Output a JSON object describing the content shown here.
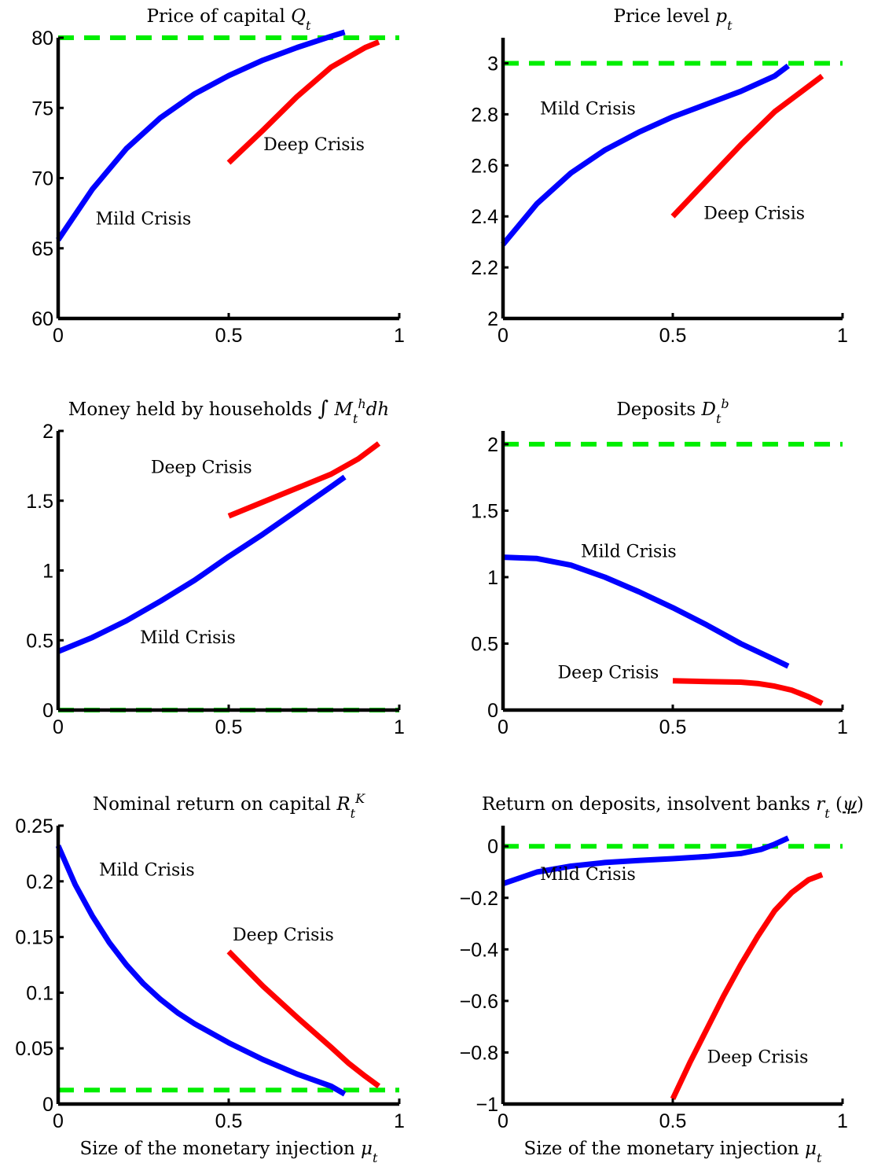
{
  "colors": {
    "mild": "#0000ff",
    "deep": "#ff0000",
    "reference": "#00ee00"
  },
  "chart_data": [
    {
      "type": "line",
      "title_parts": [
        {
          "t": "Price of capital "
        },
        {
          "t": "Q",
          "it": true
        },
        {
          "t": "t",
          "sub": true,
          "it": true
        }
      ],
      "xlabel_parts": [],
      "xlim": [
        0,
        1
      ],
      "ylim": [
        60,
        80
      ],
      "xticks": [
        0,
        0.5,
        1
      ],
      "xtick_labels": [
        "0",
        "0.5",
        "1"
      ],
      "yticks": [
        60,
        65,
        70,
        75,
        80
      ],
      "ytick_labels": [
        "60",
        "65",
        "70",
        "75",
        "80"
      ],
      "reference_line": {
        "y": 80,
        "style": "dashed",
        "color": "green"
      },
      "series": [
        {
          "key": "mild",
          "x": [
            0,
            0.1,
            0.2,
            0.3,
            0.4,
            0.5,
            0.6,
            0.7,
            0.8,
            0.84
          ],
          "y": [
            65.6,
            69.2,
            72.1,
            74.3,
            76.0,
            77.3,
            78.4,
            79.3,
            80.1,
            80.4
          ]
        },
        {
          "key": "deep",
          "x": [
            0.5,
            0.6,
            0.7,
            0.8,
            0.9,
            0.94
          ],
          "y": [
            71.1,
            73.4,
            75.8,
            77.9,
            79.3,
            79.7
          ]
        }
      ],
      "annotations": [
        {
          "text": "Mild Crisis",
          "x": 0.25,
          "y": 66.7
        },
        {
          "text": "Deep Crisis",
          "x": 0.75,
          "y": 72.0
        }
      ]
    },
    {
      "type": "line",
      "title_parts": [
        {
          "t": "Price level "
        },
        {
          "t": "p",
          "it": true
        },
        {
          "t": "t",
          "sub": true,
          "it": true
        }
      ],
      "xlabel_parts": [],
      "xlim": [
        0,
        1
      ],
      "ylim": [
        2,
        3.1
      ],
      "xticks": [
        0,
        0.5,
        1
      ],
      "xtick_labels": [
        "0",
        "0.5",
        "1"
      ],
      "yticks": [
        2,
        2.2,
        2.4,
        2.6,
        2.8,
        3
      ],
      "ytick_labels": [
        "2",
        "2.2",
        "2.4",
        "2.6",
        "2.8",
        "3"
      ],
      "reference_line": {
        "y": 3,
        "style": "dashed",
        "color": "green"
      },
      "series": [
        {
          "key": "mild",
          "x": [
            0,
            0.1,
            0.2,
            0.3,
            0.4,
            0.5,
            0.6,
            0.7,
            0.8,
            0.84
          ],
          "y": [
            2.29,
            2.45,
            2.57,
            2.66,
            2.73,
            2.79,
            2.84,
            2.89,
            2.95,
            2.99
          ]
        },
        {
          "key": "deep",
          "x": [
            0.5,
            0.6,
            0.7,
            0.8,
            0.87,
            0.94
          ],
          "y": [
            2.4,
            2.54,
            2.68,
            2.81,
            2.88,
            2.95
          ]
        }
      ],
      "annotations": [
        {
          "text": "Mild Crisis",
          "x": 0.25,
          "y": 2.8
        },
        {
          "text": "Deep Crisis",
          "x": 0.74,
          "y": 2.39
        }
      ]
    },
    {
      "type": "line",
      "title_parts": [
        {
          "t": "Money held by households "
        },
        {
          "t": "∫",
          "sym": true
        },
        {
          "t": " "
        },
        {
          "t": "M",
          "it": true
        },
        {
          "t": "t",
          "sub": true,
          "it": true
        },
        {
          "t": "h",
          "sup": true,
          "it": true
        },
        {
          "t": "dh",
          "it": true
        }
      ],
      "xlabel_parts": [],
      "xlim": [
        0,
        1
      ],
      "ylim": [
        0,
        2
      ],
      "xticks": [
        0,
        0.5,
        1
      ],
      "xtick_labels": [
        "0",
        "0.5",
        "1"
      ],
      "yticks": [
        0,
        0.5,
        1,
        1.5,
        2
      ],
      "ytick_labels": [
        "0",
        "0.5",
        "1",
        "1.5",
        "2"
      ],
      "reference_line": {
        "y": 0,
        "style": "dashed",
        "color": "green"
      },
      "series": [
        {
          "key": "mild",
          "x": [
            0,
            0.1,
            0.2,
            0.3,
            0.4,
            0.5,
            0.6,
            0.7,
            0.8,
            0.84
          ],
          "y": [
            0.42,
            0.52,
            0.64,
            0.78,
            0.93,
            1.1,
            1.26,
            1.43,
            1.6,
            1.67
          ]
        },
        {
          "key": "deep",
          "x": [
            0.5,
            0.6,
            0.7,
            0.8,
            0.88,
            0.94
          ],
          "y": [
            1.39,
            1.49,
            1.59,
            1.69,
            1.8,
            1.91
          ]
        }
      ],
      "annotations": [
        {
          "text": "Mild Crisis",
          "x": 0.38,
          "y": 0.48
        },
        {
          "text": "Deep Crisis",
          "x": 0.42,
          "y": 1.7
        }
      ]
    },
    {
      "type": "line",
      "title_parts": [
        {
          "t": "Deposits "
        },
        {
          "t": "D",
          "it": true
        },
        {
          "t": "t",
          "sub": true,
          "it": true
        },
        {
          "t": "b",
          "sup": true,
          "it": true
        }
      ],
      "xlabel_parts": [],
      "xlim": [
        0,
        1
      ],
      "ylim": [
        0,
        2.1
      ],
      "xticks": [
        0,
        0.5,
        1
      ],
      "xtick_labels": [
        "0",
        "0.5",
        "1"
      ],
      "yticks": [
        0,
        0.5,
        1,
        1.5,
        2
      ],
      "ytick_labels": [
        "0",
        "0.5",
        "1",
        "1.5",
        "2"
      ],
      "reference_line": {
        "y": 2,
        "style": "dashed",
        "color": "green"
      },
      "series": [
        {
          "key": "mild",
          "x": [
            0,
            0.1,
            0.2,
            0.3,
            0.4,
            0.5,
            0.6,
            0.7,
            0.8,
            0.84
          ],
          "y": [
            1.15,
            1.14,
            1.09,
            1.0,
            0.89,
            0.77,
            0.64,
            0.5,
            0.38,
            0.33
          ]
        },
        {
          "key": "deep",
          "x": [
            0.5,
            0.6,
            0.7,
            0.75,
            0.8,
            0.85,
            0.9,
            0.94
          ],
          "y": [
            0.22,
            0.215,
            0.21,
            0.2,
            0.18,
            0.15,
            0.1,
            0.05
          ]
        }
      ],
      "annotations": [
        {
          "text": "Mild Crisis",
          "x": 0.37,
          "y": 1.15
        },
        {
          "text": "Deep Crisis",
          "x": 0.31,
          "y": 0.24
        }
      ]
    },
    {
      "type": "line",
      "title_parts": [
        {
          "t": "Nominal return on capital "
        },
        {
          "t": "R",
          "it": true
        },
        {
          "t": "t",
          "sub": true,
          "it": true
        },
        {
          "t": "K",
          "sup": true,
          "it": true
        }
      ],
      "xlabel_parts": [
        {
          "t": "Size of the monetary injection "
        },
        {
          "t": "μ",
          "it": true
        },
        {
          "t": "t",
          "sub": true,
          "it": true
        }
      ],
      "xlim": [
        0,
        1
      ],
      "ylim": [
        0,
        0.25
      ],
      "xticks": [
        0,
        0.5,
        1
      ],
      "xtick_labels": [
        "0",
        "0.5",
        "1"
      ],
      "yticks": [
        0,
        0.05,
        0.1,
        0.15,
        0.2,
        0.25
      ],
      "ytick_labels": [
        "0",
        "0.05",
        "0.1",
        "0.15",
        "0.2",
        "0.25"
      ],
      "reference_line": {
        "y": 0.0125,
        "style": "dashed",
        "color": "green"
      },
      "series": [
        {
          "key": "mild",
          "x": [
            0,
            0.05,
            0.1,
            0.15,
            0.2,
            0.25,
            0.3,
            0.35,
            0.4,
            0.5,
            0.6,
            0.7,
            0.8,
            0.84
          ],
          "y": [
            0.232,
            0.197,
            0.169,
            0.145,
            0.125,
            0.108,
            0.094,
            0.082,
            0.072,
            0.055,
            0.04,
            0.027,
            0.016,
            0.009
          ]
        },
        {
          "key": "deep",
          "x": [
            0.5,
            0.6,
            0.7,
            0.8,
            0.85,
            0.9,
            0.94
          ],
          "y": [
            0.137,
            0.106,
            0.078,
            0.051,
            0.037,
            0.025,
            0.016
          ]
        }
      ],
      "annotations": [
        {
          "text": "Mild Crisis",
          "x": 0.26,
          "y": 0.205
        },
        {
          "text": "Deep Crisis",
          "x": 0.66,
          "y": 0.147
        }
      ]
    },
    {
      "type": "line",
      "title_parts": [
        {
          "t": "Return on deposits, insolvent banks "
        },
        {
          "t": "r",
          "it": true
        },
        {
          "t": "t",
          "sub": true,
          "it": true
        },
        {
          "t": " ("
        },
        {
          "t": "ψ",
          "it": true,
          "under": true
        },
        {
          "t": ")"
        }
      ],
      "xlabel_parts": [
        {
          "t": "Size of the monetary injection "
        },
        {
          "t": "μ",
          "it": true
        },
        {
          "t": "t",
          "sub": true,
          "it": true
        }
      ],
      "xlim": [
        0,
        1
      ],
      "ylim": [
        -1,
        0.08
      ],
      "xticks": [
        0,
        0.5,
        1
      ],
      "xtick_labels": [
        "0",
        "0.5",
        "1"
      ],
      "yticks": [
        -1,
        -0.8,
        -0.6,
        -0.4,
        -0.2,
        0
      ],
      "ytick_labels": [
        "−1",
        "−0.8",
        "−0.6",
        "−0.4",
        "−0.2",
        "0"
      ],
      "reference_line": {
        "y": 0,
        "style": "dashed",
        "color": "green"
      },
      "series": [
        {
          "key": "mild",
          "x": [
            0,
            0.1,
            0.2,
            0.3,
            0.4,
            0.5,
            0.6,
            0.7,
            0.76,
            0.8,
            0.84
          ],
          "y": [
            -0.145,
            -0.1,
            -0.077,
            -0.063,
            -0.055,
            -0.048,
            -0.04,
            -0.028,
            -0.012,
            0.008,
            0.032
          ]
        },
        {
          "key": "deep",
          "x": [
            0.5,
            0.55,
            0.6,
            0.65,
            0.7,
            0.75,
            0.8,
            0.85,
            0.9,
            0.94
          ],
          "y": [
            -0.98,
            -0.84,
            -0.71,
            -0.58,
            -0.46,
            -0.35,
            -0.25,
            -0.18,
            -0.13,
            -0.11
          ]
        }
      ],
      "annotations": [
        {
          "text": "Mild Crisis",
          "x": 0.25,
          "y": -0.13
        },
        {
          "text": "Deep Crisis",
          "x": 0.75,
          "y": -0.84
        }
      ]
    }
  ]
}
